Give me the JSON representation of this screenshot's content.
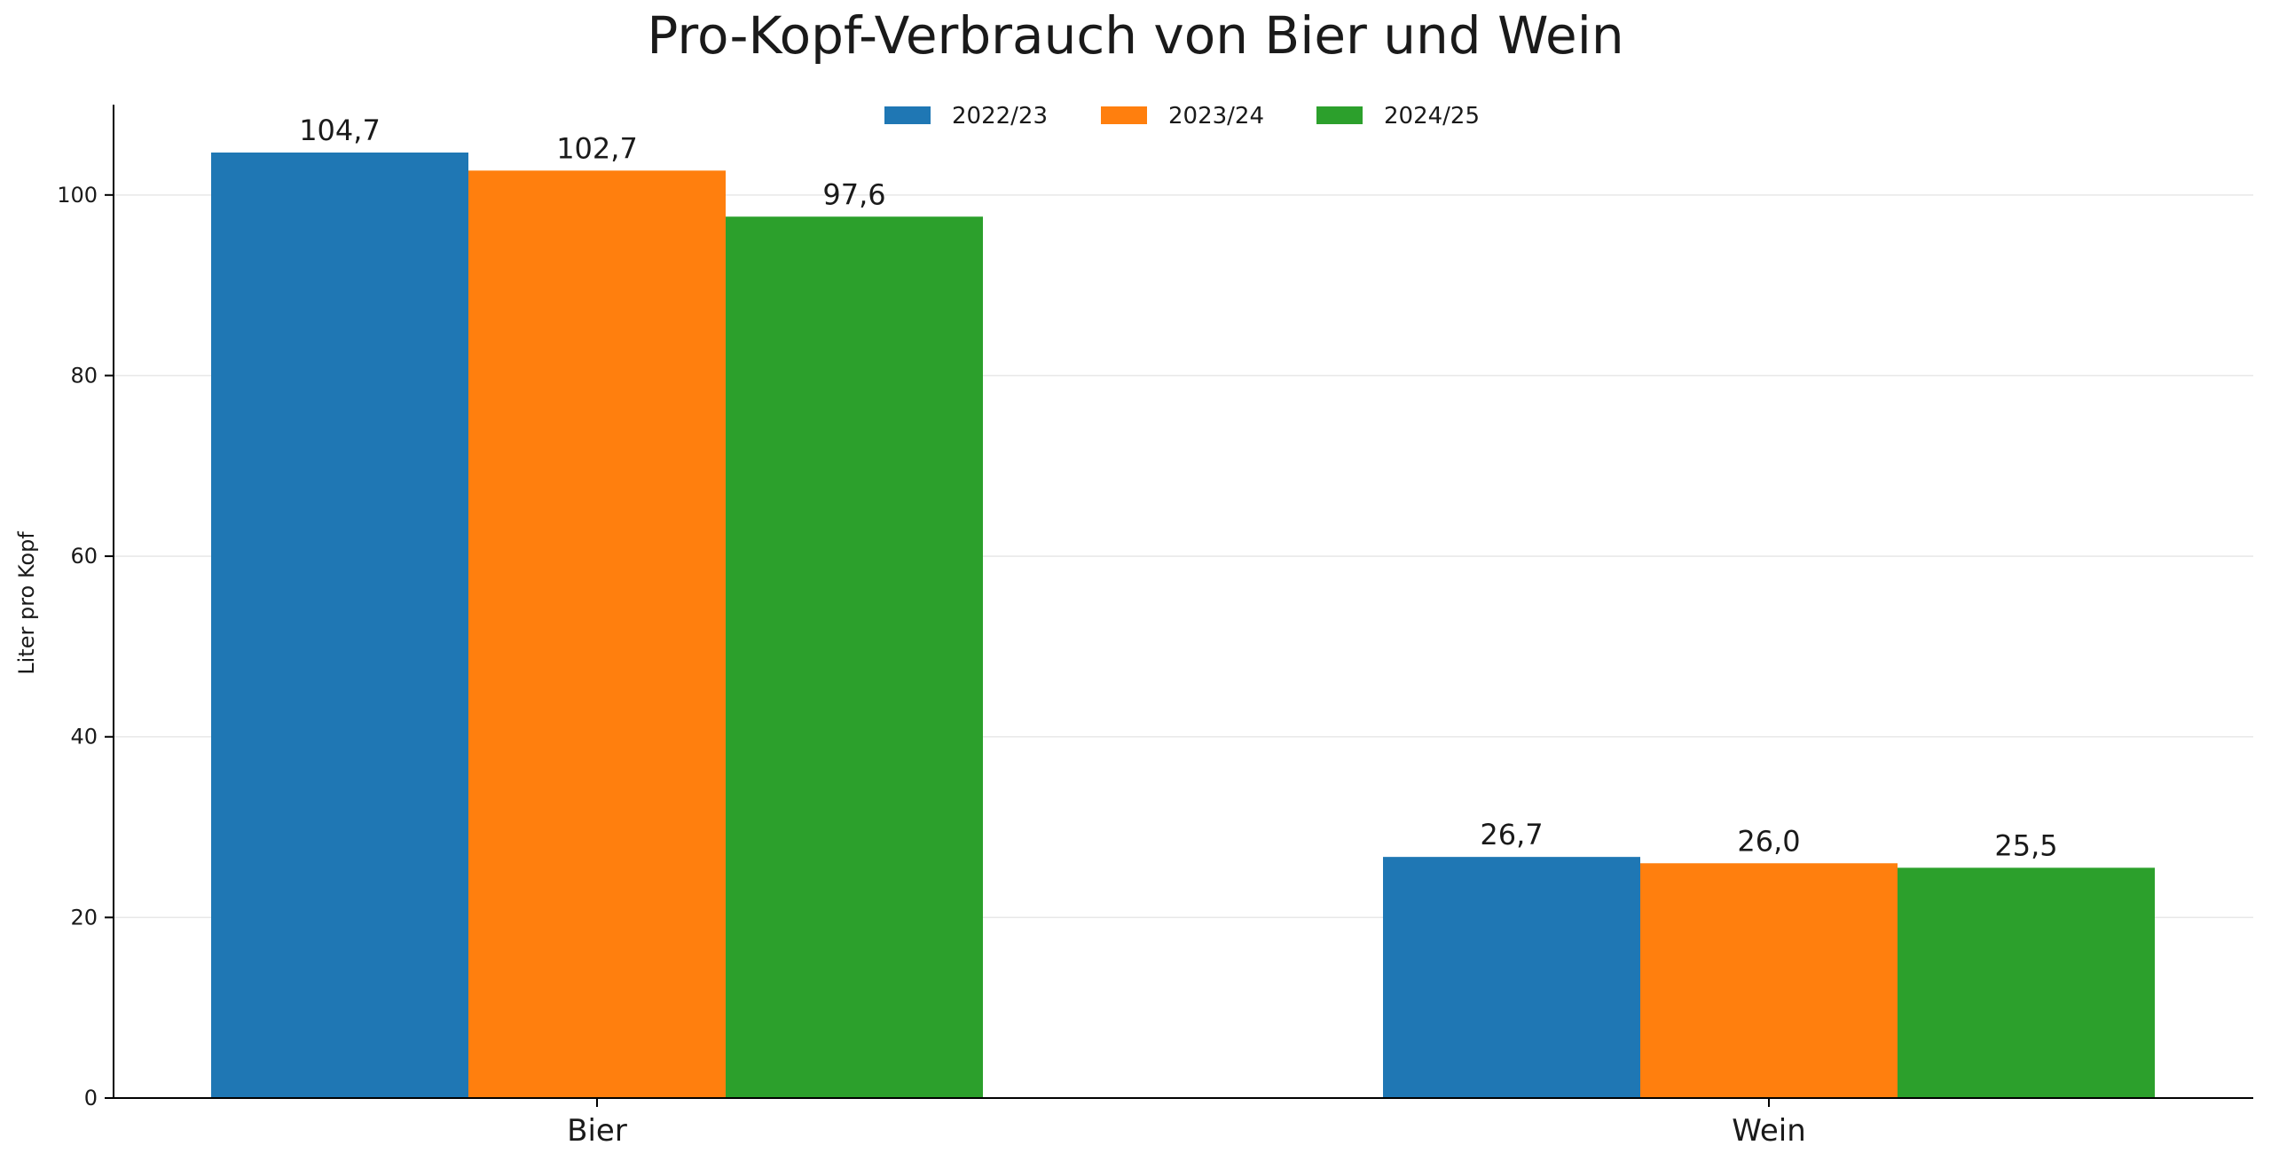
{
  "chart_data": {
    "type": "bar",
    "title": "Pro-Kopf-Verbrauch von Bier und Wein",
    "xlabel": "",
    "ylabel": "Liter pro Kopf",
    "categories": [
      "Bier",
      "Wein"
    ],
    "series": [
      {
        "name": "2022/23",
        "color": "#1f77b4",
        "values": [
          104.7,
          26.7
        ],
        "labels": [
          "104,7",
          "26,7"
        ]
      },
      {
        "name": "2023/24",
        "color": "#ff7f0e",
        "values": [
          102.7,
          26.0
        ],
        "labels": [
          "102,7",
          "26,0"
        ]
      },
      {
        "name": "2024/25",
        "color": "#2ca02c",
        "values": [
          97.6,
          25.5
        ],
        "labels": [
          "97,6",
          "25,5"
        ]
      }
    ],
    "ylim": [
      0,
      110
    ],
    "yticks": [
      0,
      20,
      40,
      60,
      80,
      100
    ],
    "grid": "horizontal",
    "legend_position": "top-center"
  }
}
